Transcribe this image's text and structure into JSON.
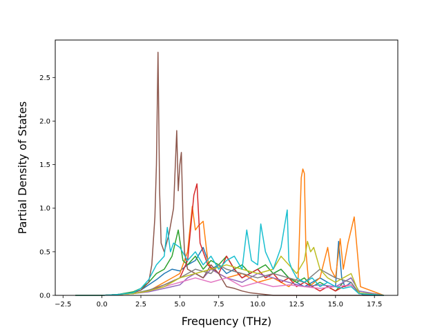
{
  "chart_data": {
    "type": "line",
    "title": "",
    "xlabel": "Frequency (THz)",
    "ylabel": "Partial Density of States",
    "xlim": [
      -3.0,
      19.0
    ],
    "ylim": [
      0.0,
      2.93
    ],
    "xticks": [
      -2.5,
      0.0,
      2.5,
      5.0,
      7.5,
      10.0,
      12.5,
      15.0,
      17.5
    ],
    "xtick_labels": [
      "−2.5",
      "0.0",
      "2.5",
      "5.0",
      "7.5",
      "10.0",
      "12.5",
      "15.0",
      "17.5"
    ],
    "yticks": [
      0.0,
      0.5,
      1.0,
      1.5,
      2.0,
      2.5
    ],
    "ytick_labels": [
      "0.0",
      "0.5",
      "1.0",
      "1.5",
      "2.0",
      "2.5"
    ],
    "grid": false,
    "legend": false,
    "series": [
      {
        "color": "#1f77b4",
        "x": [
          -1.7,
          0.0,
          1.0,
          2.0,
          2.5,
          3.0,
          3.5,
          4.0,
          4.5,
          5.0,
          5.5,
          6.0,
          6.5,
          7.0,
          7.5,
          8.0,
          8.5,
          9.0,
          9.5,
          10.0,
          10.5,
          11.0,
          11.5,
          12.0,
          12.5,
          13.0,
          13.5,
          14.0,
          14.5,
          15.0,
          15.2,
          15.4,
          15.6,
          16.0,
          16.4,
          16.8,
          18.1
        ],
        "y": [
          0.0,
          0.0,
          0.01,
          0.03,
          0.06,
          0.12,
          0.18,
          0.25,
          0.3,
          0.28,
          0.35,
          0.4,
          0.55,
          0.3,
          0.35,
          0.25,
          0.3,
          0.2,
          0.25,
          0.3,
          0.2,
          0.25,
          0.3,
          0.2,
          0.15,
          0.1,
          0.15,
          0.2,
          0.15,
          0.1,
          0.62,
          0.2,
          0.1,
          0.15,
          0.05,
          0.0,
          0.0
        ]
      },
      {
        "color": "#ff7f0e",
        "x": [
          -1.7,
          0.0,
          1.0,
          2.0,
          3.0,
          4.0,
          5.0,
          5.5,
          5.8,
          6.0,
          6.2,
          6.5,
          6.8,
          7.0,
          8.0,
          9.0,
          10.0,
          11.0,
          12.0,
          12.6,
          12.8,
          12.9,
          13.0,
          13.1,
          13.3,
          14.0,
          14.5,
          14.7,
          15.0,
          15.3,
          15.5,
          15.8,
          16.0,
          16.2,
          16.4,
          16.6,
          18.1
        ],
        "y": [
          0.0,
          0.0,
          0.01,
          0.02,
          0.05,
          0.15,
          0.25,
          0.5,
          1.02,
          0.75,
          0.8,
          0.85,
          0.4,
          0.3,
          0.2,
          0.25,
          0.15,
          0.2,
          0.1,
          0.2,
          1.35,
          1.45,
          1.4,
          0.5,
          0.1,
          0.2,
          0.55,
          0.3,
          0.2,
          0.65,
          0.3,
          0.6,
          0.75,
          0.9,
          0.5,
          0.1,
          0.0
        ]
      },
      {
        "color": "#2ca02c",
        "x": [
          -1.7,
          0.0,
          1.0,
          2.0,
          2.5,
          3.0,
          3.5,
          4.0,
          4.5,
          4.9,
          5.2,
          5.5,
          6.0,
          6.5,
          7.0,
          7.5,
          8.0,
          8.5,
          9.0,
          9.5,
          10.0,
          10.5,
          11.0,
          11.5,
          12.0,
          12.5,
          13.0,
          13.5,
          14.0,
          14.5,
          15.0,
          15.5,
          16.0,
          16.5,
          18.1
        ],
        "y": [
          0.0,
          0.0,
          0.01,
          0.04,
          0.08,
          0.15,
          0.25,
          0.3,
          0.45,
          0.75,
          0.4,
          0.35,
          0.45,
          0.3,
          0.4,
          0.35,
          0.45,
          0.3,
          0.35,
          0.25,
          0.3,
          0.35,
          0.25,
          0.3,
          0.2,
          0.15,
          0.2,
          0.1,
          0.15,
          0.1,
          0.05,
          0.15,
          0.2,
          0.05,
          0.0
        ]
      },
      {
        "color": "#d62728",
        "x": [
          -1.7,
          0.0,
          1.0,
          2.0,
          3.0,
          4.0,
          5.0,
          5.5,
          5.9,
          6.1,
          6.3,
          6.8,
          7.5,
          8.0,
          8.5,
          9.0,
          9.5,
          10.0,
          10.5,
          11.0,
          11.5,
          12.0,
          12.5,
          13.0,
          13.5,
          14.0,
          14.5,
          15.0,
          15.5,
          16.0,
          16.5,
          18.1
        ],
        "y": [
          0.0,
          0.0,
          0.01,
          0.02,
          0.05,
          0.12,
          0.2,
          0.4,
          1.15,
          1.28,
          0.6,
          0.35,
          0.25,
          0.45,
          0.3,
          0.2,
          0.25,
          0.3,
          0.2,
          0.25,
          0.15,
          0.2,
          0.1,
          0.15,
          0.1,
          0.05,
          0.1,
          0.05,
          0.1,
          0.12,
          0.02,
          0.0
        ]
      },
      {
        "color": "#9467bd",
        "x": [
          -1.7,
          0.0,
          1.0,
          2.0,
          3.0,
          4.0,
          4.5,
          5.0,
          5.5,
          6.0,
          6.5,
          7.0,
          7.5,
          8.0,
          9.0,
          10.0,
          11.0,
          12.0,
          13.0,
          14.0,
          15.0,
          15.5,
          16.0,
          16.5,
          18.1
        ],
        "y": [
          0.0,
          0.0,
          0.01,
          0.02,
          0.04,
          0.08,
          0.1,
          0.12,
          0.2,
          0.25,
          0.2,
          0.3,
          0.25,
          0.2,
          0.15,
          0.25,
          0.2,
          0.15,
          0.1,
          0.12,
          0.1,
          0.15,
          0.2,
          0.05,
          0.0
        ]
      },
      {
        "color": "#8c564b",
        "x": [
          -1.7,
          0.0,
          1.0,
          2.0,
          2.5,
          3.0,
          3.2,
          3.4,
          3.5,
          3.6,
          3.7,
          3.8,
          4.0,
          4.3,
          4.6,
          4.8,
          4.9,
          5.0,
          5.1,
          5.2,
          5.3,
          5.5,
          6.0,
          6.5,
          7.0,
          7.5,
          8.0,
          8.5,
          9.0,
          9.5,
          10.0,
          10.5,
          11.0,
          12.0,
          13.0,
          14.0,
          15.0,
          16.0,
          16.5,
          18.1
        ],
        "y": [
          0.0,
          0.0,
          0.01,
          0.03,
          0.06,
          0.15,
          0.35,
          0.9,
          1.5,
          2.79,
          1.2,
          0.6,
          0.5,
          0.7,
          1.0,
          1.89,
          1.2,
          1.5,
          1.64,
          0.9,
          0.5,
          0.3,
          0.25,
          0.2,
          0.35,
          0.25,
          0.1,
          0.08,
          0.05,
          0.03,
          0.02,
          0.01,
          0.0,
          0.0,
          0.0,
          0.0,
          0.0,
          0.0,
          0.0,
          0.0
        ]
      },
      {
        "color": "#e377c2",
        "x": [
          -1.7,
          0.0,
          1.0,
          2.0,
          3.0,
          4.0,
          5.0,
          6.0,
          7.0,
          8.0,
          9.0,
          10.0,
          11.0,
          12.0,
          13.0,
          14.0,
          15.0,
          16.0,
          16.5,
          18.1
        ],
        "y": [
          0.0,
          0.0,
          0.01,
          0.02,
          0.05,
          0.1,
          0.15,
          0.2,
          0.15,
          0.2,
          0.1,
          0.15,
          0.1,
          0.12,
          0.1,
          0.08,
          0.1,
          0.12,
          0.02,
          0.0
        ]
      },
      {
        "color": "#7f7f7f",
        "x": [
          -1.7,
          0.0,
          1.0,
          2.0,
          3.0,
          4.0,
          5.0,
          6.0,
          7.0,
          7.5,
          8.0,
          9.0,
          10.0,
          11.0,
          12.0,
          13.0,
          14.0,
          15.0,
          16.0,
          16.5,
          18.1
        ],
        "y": [
          0.0,
          0.0,
          0.01,
          0.02,
          0.06,
          0.12,
          0.2,
          0.3,
          0.25,
          0.35,
          0.3,
          0.25,
          0.2,
          0.25,
          0.2,
          0.15,
          0.3,
          0.2,
          0.15,
          0.02,
          0.0
        ]
      },
      {
        "color": "#bcbd22",
        "x": [
          -1.7,
          0.0,
          1.0,
          2.0,
          3.0,
          4.0,
          5.0,
          6.0,
          7.0,
          8.0,
          9.0,
          10.0,
          11.0,
          11.5,
          12.0,
          12.5,
          13.0,
          13.2,
          13.4,
          13.6,
          14.0,
          14.5,
          15.0,
          15.5,
          16.0,
          16.5,
          18.1
        ],
        "y": [
          0.0,
          0.0,
          0.01,
          0.02,
          0.05,
          0.1,
          0.2,
          0.25,
          0.3,
          0.35,
          0.3,
          0.25,
          0.3,
          0.45,
          0.35,
          0.25,
          0.4,
          0.62,
          0.5,
          0.55,
          0.3,
          0.2,
          0.15,
          0.2,
          0.25,
          0.03,
          0.0
        ]
      },
      {
        "color": "#17becf",
        "x": [
          -1.7,
          0.0,
          1.0,
          2.0,
          2.5,
          3.0,
          3.5,
          4.0,
          4.2,
          4.4,
          4.6,
          5.0,
          5.5,
          6.0,
          6.5,
          7.0,
          7.5,
          8.0,
          8.5,
          9.0,
          9.3,
          9.6,
          10.0,
          10.2,
          10.5,
          11.0,
          11.5,
          11.9,
          12.0,
          12.2,
          12.5,
          13.0,
          13.5,
          14.0,
          14.5,
          15.0,
          15.5,
          16.0,
          16.5,
          18.1
        ],
        "y": [
          0.0,
          0.0,
          0.01,
          0.03,
          0.08,
          0.18,
          0.35,
          0.45,
          0.78,
          0.5,
          0.6,
          0.55,
          0.4,
          0.5,
          0.35,
          0.45,
          0.3,
          0.4,
          0.45,
          0.3,
          0.75,
          0.4,
          0.35,
          0.82,
          0.5,
          0.3,
          0.55,
          0.98,
          0.4,
          0.3,
          0.2,
          0.15,
          0.2,
          0.1,
          0.15,
          0.1,
          0.08,
          0.1,
          0.02,
          0.0
        ]
      }
    ]
  }
}
